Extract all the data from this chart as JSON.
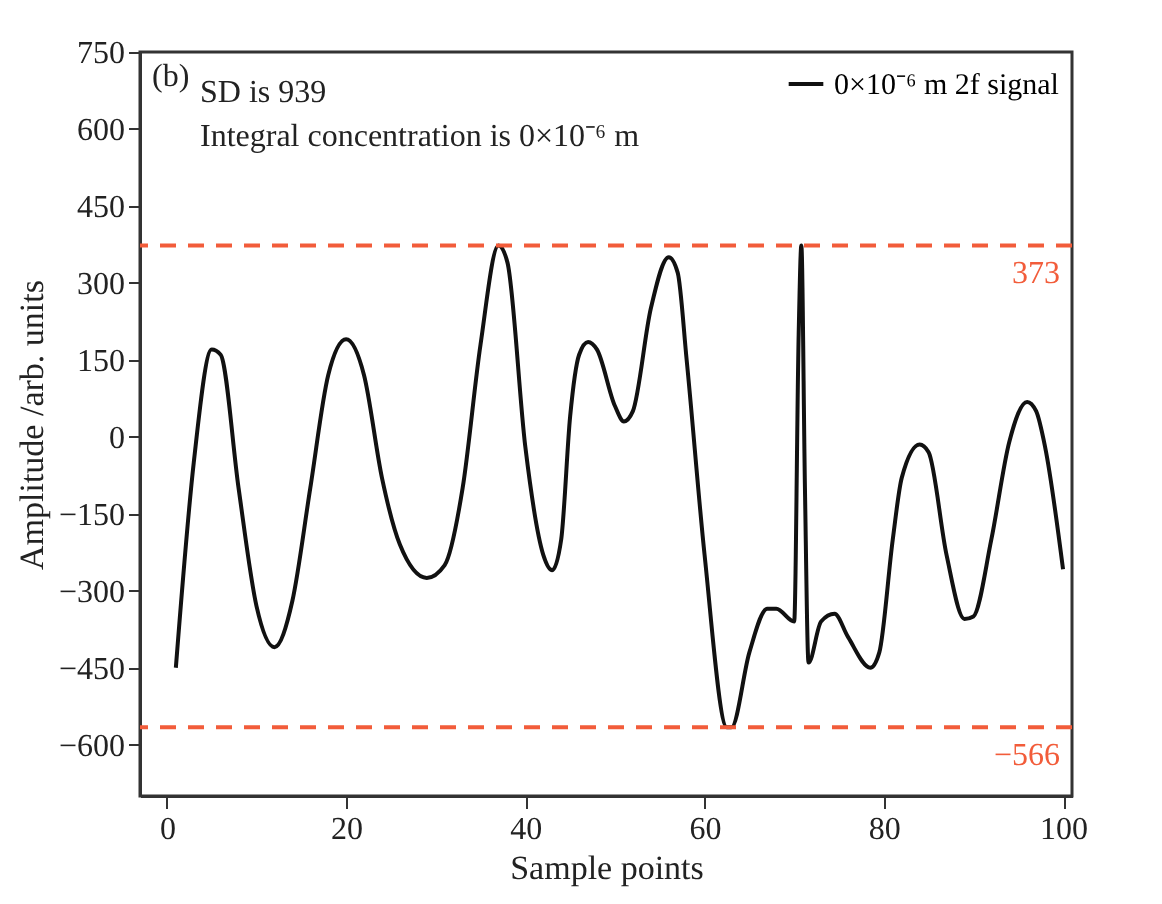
{
  "chart_data": {
    "type": "line",
    "xlabel": "Sample points",
    "ylabel": "Amplitude /arb. units",
    "annotations": [
      "(b)",
      "SD is 939",
      "Integral concentration is 0×10⁻⁶ m"
    ],
    "series": [
      {
        "name": "0×10⁻⁶ m 2f signal",
        "color": "#111111",
        "x": [
          1,
          3,
          5,
          6,
          8,
          10,
          12,
          14,
          16,
          18,
          20,
          22,
          24,
          26,
          29,
          31,
          33,
          35,
          37,
          38,
          40,
          42,
          43,
          44,
          45,
          46,
          47,
          48,
          50,
          51,
          52,
          54,
          56,
          57,
          58,
          60,
          62.5,
          63,
          65,
          67,
          68,
          70,
          70.5,
          70.8,
          71.2,
          71.6,
          73,
          74.5,
          76,
          78.5,
          79.5,
          81,
          82,
          84,
          85,
          87,
          89,
          90,
          92,
          94,
          96,
          97,
          98,
          100
        ],
        "values": [
          -450,
          -50,
          170,
          160,
          -100,
          -330,
          -410,
          -320,
          -100,
          120,
          190,
          120,
          -80,
          -210,
          -275,
          -250,
          -100,
          180,
          373,
          340,
          -20,
          -230,
          -260,
          -200,
          40,
          160,
          185,
          170,
          60,
          30,
          50,
          250,
          350,
          320,
          150,
          -230,
          -566,
          -566,
          -420,
          -335,
          -335,
          -360,
          200,
          373,
          -100,
          -440,
          -360,
          -345,
          -390,
          -450,
          -420,
          -200,
          -80,
          -15,
          -30,
          -230,
          -355,
          -350,
          -200,
          -10,
          68,
          50,
          -20,
          -258
        ]
      }
    ],
    "xlim": [
      -3,
      101
    ],
    "xticks": [
      0,
      20,
      40,
      60,
      80,
      100
    ],
    "ylim": [
      -700,
      750
    ],
    "yticks": [
      -600,
      -450,
      -300,
      -150,
      0,
      150,
      300,
      450,
      600,
      750
    ],
    "ref_lines": [
      {
        "axis": "y",
        "value": 373,
        "label": "373",
        "color": "#f25c3a",
        "line_style": "dashed"
      },
      {
        "axis": "y",
        "value": -566,
        "label": "−566",
        "color": "#f25c3a",
        "line_style": "dashed"
      }
    ],
    "grid": false,
    "legend": "top right",
    "marker": "none",
    "line_style": "solid"
  }
}
